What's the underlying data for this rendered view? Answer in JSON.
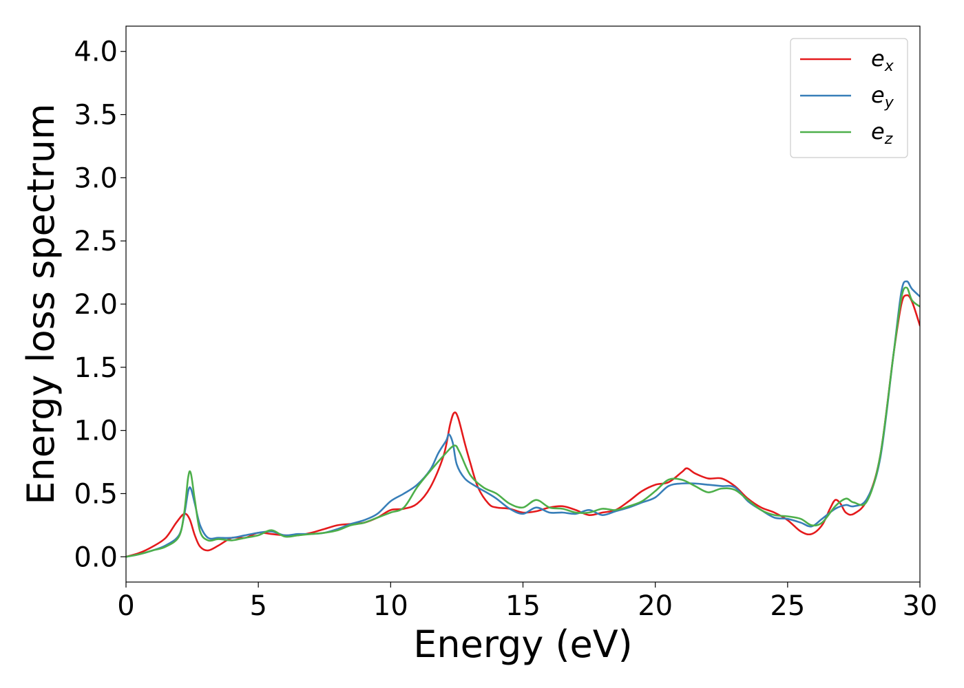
{
  "chart_data": {
    "type": "line",
    "xlabel": "Energy (eV)",
    "ylabel": "Energy loss spectrum",
    "xlim": [
      0,
      30
    ],
    "ylim": [
      -0.2,
      4.2
    ],
    "xticks": [
      0,
      5,
      10,
      15,
      20,
      25,
      30
    ],
    "xtick_labels": [
      "0",
      "5",
      "10",
      "15",
      "20",
      "25",
      "30"
    ],
    "yticks": [
      0.0,
      0.5,
      1.0,
      1.5,
      2.0,
      2.5,
      3.0,
      3.5,
      4.0
    ],
    "ytick_labels": [
      "0.0",
      "0.5",
      "1.0",
      "1.5",
      "2.0",
      "2.5",
      "3.0",
      "3.5",
      "4.0"
    ],
    "grid": false,
    "legend": "top-right",
    "series": [
      {
        "name": "e_x",
        "label_main": "e",
        "label_sub": "x",
        "color": "#e41a1c",
        "points": [
          [
            0,
            0.0
          ],
          [
            0.5,
            0.03
          ],
          [
            1.0,
            0.08
          ],
          [
            1.5,
            0.15
          ],
          [
            1.9,
            0.27
          ],
          [
            2.2,
            0.34
          ],
          [
            2.4,
            0.3
          ],
          [
            2.6,
            0.17
          ],
          [
            2.8,
            0.08
          ],
          [
            3.1,
            0.05
          ],
          [
            3.5,
            0.09
          ],
          [
            4.0,
            0.15
          ],
          [
            4.5,
            0.15
          ],
          [
            5.0,
            0.19
          ],
          [
            5.5,
            0.18
          ],
          [
            6.0,
            0.17
          ],
          [
            6.5,
            0.17
          ],
          [
            7.0,
            0.19
          ],
          [
            7.5,
            0.22
          ],
          [
            8.0,
            0.25
          ],
          [
            8.5,
            0.26
          ],
          [
            9.0,
            0.27
          ],
          [
            9.5,
            0.31
          ],
          [
            10.0,
            0.37
          ],
          [
            10.5,
            0.38
          ],
          [
            11.0,
            0.42
          ],
          [
            11.5,
            0.55
          ],
          [
            12.0,
            0.8
          ],
          [
            12.25,
            1.05
          ],
          [
            12.4,
            1.14
          ],
          [
            12.55,
            1.1
          ],
          [
            12.8,
            0.9
          ],
          [
            13.0,
            0.75
          ],
          [
            13.3,
            0.55
          ],
          [
            13.7,
            0.42
          ],
          [
            14.0,
            0.39
          ],
          [
            14.5,
            0.38
          ],
          [
            15.0,
            0.35
          ],
          [
            15.5,
            0.36
          ],
          [
            16.0,
            0.39
          ],
          [
            16.5,
            0.4
          ],
          [
            17.0,
            0.37
          ],
          [
            17.5,
            0.33
          ],
          [
            18.0,
            0.35
          ],
          [
            18.5,
            0.37
          ],
          [
            19.0,
            0.44
          ],
          [
            19.5,
            0.52
          ],
          [
            20.0,
            0.57
          ],
          [
            20.5,
            0.59
          ],
          [
            21.0,
            0.67
          ],
          [
            21.2,
            0.7
          ],
          [
            21.5,
            0.66
          ],
          [
            22.0,
            0.62
          ],
          [
            22.5,
            0.62
          ],
          [
            23.0,
            0.56
          ],
          [
            23.5,
            0.46
          ],
          [
            24.0,
            0.39
          ],
          [
            24.5,
            0.35
          ],
          [
            25.0,
            0.29
          ],
          [
            25.5,
            0.2
          ],
          [
            25.9,
            0.18
          ],
          [
            26.3,
            0.25
          ],
          [
            26.6,
            0.38
          ],
          [
            26.8,
            0.45
          ],
          [
            27.0,
            0.42
          ],
          [
            27.2,
            0.35
          ],
          [
            27.5,
            0.34
          ],
          [
            28.0,
            0.45
          ],
          [
            28.5,
            0.8
          ],
          [
            29.0,
            1.6
          ],
          [
            29.3,
            2.0
          ],
          [
            29.5,
            2.07
          ],
          [
            29.7,
            2.02
          ],
          [
            30.0,
            1.83
          ]
        ]
      },
      {
        "name": "e_y",
        "label_main": "e",
        "label_sub": "y",
        "color": "#377eb8",
        "points": [
          [
            0,
            0.0
          ],
          [
            0.5,
            0.02
          ],
          [
            1.0,
            0.05
          ],
          [
            1.5,
            0.09
          ],
          [
            2.0,
            0.17
          ],
          [
            2.2,
            0.33
          ],
          [
            2.35,
            0.52
          ],
          [
            2.45,
            0.54
          ],
          [
            2.6,
            0.42
          ],
          [
            2.8,
            0.25
          ],
          [
            3.1,
            0.15
          ],
          [
            3.5,
            0.15
          ],
          [
            4.0,
            0.15
          ],
          [
            4.5,
            0.17
          ],
          [
            5.0,
            0.19
          ],
          [
            5.5,
            0.2
          ],
          [
            6.0,
            0.17
          ],
          [
            6.5,
            0.18
          ],
          [
            7.0,
            0.18
          ],
          [
            7.5,
            0.19
          ],
          [
            8.0,
            0.22
          ],
          [
            8.5,
            0.26
          ],
          [
            9.0,
            0.29
          ],
          [
            9.5,
            0.34
          ],
          [
            10.0,
            0.44
          ],
          [
            10.5,
            0.5
          ],
          [
            11.0,
            0.57
          ],
          [
            11.5,
            0.69
          ],
          [
            11.8,
            0.82
          ],
          [
            12.1,
            0.92
          ],
          [
            12.2,
            0.97
          ],
          [
            12.35,
            0.9
          ],
          [
            12.5,
            0.73
          ],
          [
            12.8,
            0.62
          ],
          [
            13.2,
            0.56
          ],
          [
            13.7,
            0.5
          ],
          [
            14.0,
            0.46
          ],
          [
            14.5,
            0.38
          ],
          [
            15.0,
            0.34
          ],
          [
            15.5,
            0.39
          ],
          [
            16.0,
            0.35
          ],
          [
            16.5,
            0.35
          ],
          [
            17.0,
            0.34
          ],
          [
            17.5,
            0.37
          ],
          [
            18.0,
            0.33
          ],
          [
            18.5,
            0.36
          ],
          [
            19.0,
            0.39
          ],
          [
            19.5,
            0.43
          ],
          [
            20.0,
            0.47
          ],
          [
            20.5,
            0.56
          ],
          [
            21.0,
            0.58
          ],
          [
            21.5,
            0.58
          ],
          [
            22.0,
            0.57
          ],
          [
            22.5,
            0.56
          ],
          [
            23.0,
            0.55
          ],
          [
            23.5,
            0.44
          ],
          [
            24.0,
            0.37
          ],
          [
            24.5,
            0.31
          ],
          [
            25.0,
            0.3
          ],
          [
            25.5,
            0.27
          ],
          [
            25.9,
            0.24
          ],
          [
            26.3,
            0.3
          ],
          [
            26.8,
            0.38
          ],
          [
            27.2,
            0.41
          ],
          [
            27.5,
            0.4
          ],
          [
            28.0,
            0.46
          ],
          [
            28.5,
            0.78
          ],
          [
            29.0,
            1.6
          ],
          [
            29.3,
            2.1
          ],
          [
            29.5,
            2.18
          ],
          [
            29.7,
            2.12
          ],
          [
            30.0,
            2.06
          ]
        ]
      },
      {
        "name": "e_z",
        "label_main": "e",
        "label_sub": "z",
        "color": "#4daf4a",
        "points": [
          [
            0,
            0.0
          ],
          [
            0.5,
            0.02
          ],
          [
            1.0,
            0.05
          ],
          [
            1.5,
            0.08
          ],
          [
            2.0,
            0.16
          ],
          [
            2.2,
            0.35
          ],
          [
            2.35,
            0.63
          ],
          [
            2.45,
            0.66
          ],
          [
            2.6,
            0.45
          ],
          [
            2.8,
            0.2
          ],
          [
            3.1,
            0.13
          ],
          [
            3.5,
            0.14
          ],
          [
            4.0,
            0.13
          ],
          [
            4.5,
            0.15
          ],
          [
            5.0,
            0.17
          ],
          [
            5.5,
            0.21
          ],
          [
            6.0,
            0.16
          ],
          [
            6.5,
            0.17
          ],
          [
            7.0,
            0.18
          ],
          [
            7.5,
            0.19
          ],
          [
            8.0,
            0.21
          ],
          [
            8.5,
            0.25
          ],
          [
            9.0,
            0.27
          ],
          [
            9.5,
            0.31
          ],
          [
            10.0,
            0.35
          ],
          [
            10.5,
            0.39
          ],
          [
            11.0,
            0.55
          ],
          [
            11.5,
            0.68
          ],
          [
            12.0,
            0.8
          ],
          [
            12.4,
            0.88
          ],
          [
            12.6,
            0.83
          ],
          [
            13.0,
            0.65
          ],
          [
            13.5,
            0.55
          ],
          [
            14.0,
            0.5
          ],
          [
            14.5,
            0.42
          ],
          [
            15.0,
            0.39
          ],
          [
            15.5,
            0.45
          ],
          [
            16.0,
            0.39
          ],
          [
            16.5,
            0.38
          ],
          [
            17.0,
            0.35
          ],
          [
            17.5,
            0.35
          ],
          [
            18.0,
            0.38
          ],
          [
            18.5,
            0.37
          ],
          [
            19.0,
            0.4
          ],
          [
            19.5,
            0.44
          ],
          [
            20.0,
            0.52
          ],
          [
            20.5,
            0.61
          ],
          [
            21.0,
            0.61
          ],
          [
            21.5,
            0.56
          ],
          [
            22.0,
            0.51
          ],
          [
            22.5,
            0.54
          ],
          [
            23.0,
            0.53
          ],
          [
            23.5,
            0.45
          ],
          [
            24.0,
            0.37
          ],
          [
            24.5,
            0.33
          ],
          [
            25.0,
            0.32
          ],
          [
            25.5,
            0.3
          ],
          [
            25.9,
            0.25
          ],
          [
            26.3,
            0.27
          ],
          [
            26.8,
            0.4
          ],
          [
            27.2,
            0.46
          ],
          [
            27.5,
            0.43
          ],
          [
            28.0,
            0.44
          ],
          [
            28.5,
            0.8
          ],
          [
            29.0,
            1.6
          ],
          [
            29.3,
            2.05
          ],
          [
            29.5,
            2.13
          ],
          [
            29.7,
            2.03
          ],
          [
            30.0,
            1.98
          ]
        ]
      }
    ]
  }
}
